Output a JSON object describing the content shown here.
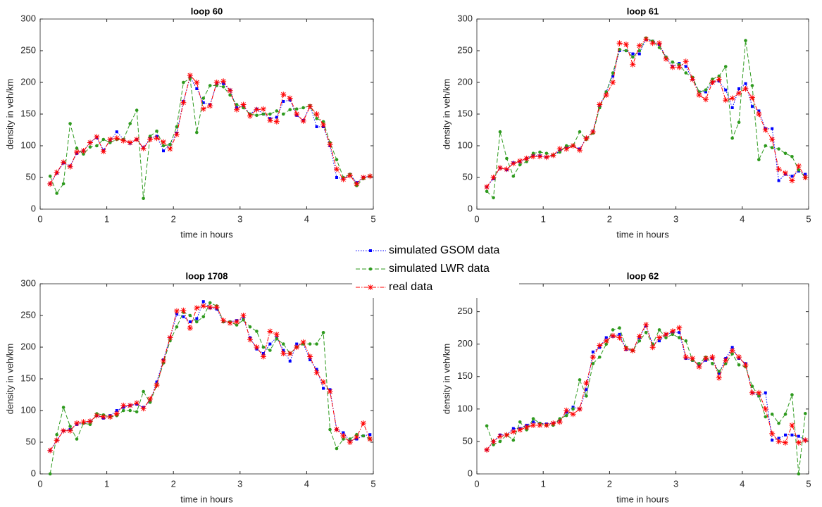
{
  "chart_data": [
    {
      "type": "line",
      "title": "loop 60",
      "xlabel": "time in hours",
      "ylabel": "density in veh/km",
      "xlim": [
        0,
        5
      ],
      "xticks": [
        0,
        1,
        2,
        3,
        4,
        5
      ],
      "ylim": [
        0,
        300
      ],
      "yticks": [
        0,
        50,
        100,
        150,
        200,
        250,
        300
      ],
      "x": [
        0.15,
        0.25,
        0.35,
        0.45,
        0.55,
        0.65,
        0.75,
        0.85,
        0.95,
        1.05,
        1.15,
        1.25,
        1.35,
        1.45,
        1.55,
        1.65,
        1.75,
        1.85,
        1.95,
        2.05,
        2.15,
        2.25,
        2.35,
        2.45,
        2.55,
        2.65,
        2.75,
        2.85,
        2.95,
        3.05,
        3.15,
        3.25,
        3.35,
        3.45,
        3.55,
        3.65,
        3.75,
        3.85,
        3.95,
        4.05,
        4.15,
        4.25,
        4.35,
        4.45,
        4.55,
        4.65,
        4.75,
        4.85,
        4.95
      ],
      "series": [
        {
          "values": [
            40,
            57,
            73,
            68,
            88,
            92,
            105,
            113,
            93,
            108,
            122,
            110,
            104,
            110,
            97,
            112,
            115,
            92,
            102,
            120,
            170,
            208,
            190,
            168,
            165,
            198,
            198,
            188,
            160,
            163,
            150,
            158,
            150,
            143,
            145,
            170,
            172,
            148,
            140,
            163,
            130,
            130,
            100,
            50,
            48,
            55,
            42,
            50,
            52
          ]
        },
        {
          "values": [
            52,
            25,
            40,
            135,
            96,
            87,
            98,
            100,
            110,
            105,
            110,
            110,
            135,
            156,
            17,
            115,
            123,
            100,
            102,
            130,
            200,
            206,
            121,
            175,
            195,
            195,
            193,
            180,
            165,
            160,
            150,
            148,
            150,
            150,
            155,
            150,
            157,
            158,
            160,
            163,
            143,
            138,
            105,
            78,
            50,
            55,
            37,
            48,
            52
          ]
        },
        {
          "values": [
            40,
            58,
            74,
            67,
            90,
            92,
            105,
            114,
            91,
            110,
            112,
            108,
            105,
            110,
            96,
            110,
            112,
            106,
            95,
            118,
            168,
            211,
            200,
            158,
            163,
            200,
            202,
            187,
            157,
            165,
            147,
            157,
            158,
            140,
            138,
            181,
            175,
            150,
            139,
            162,
            150,
            133,
            102,
            63,
            47,
            53,
            40,
            50,
            52
          ]
        }
      ]
    },
    {
      "type": "line",
      "title": "loop 61",
      "xlabel": "time in hours",
      "ylabel": "density in veh/km",
      "xlim": [
        0,
        5
      ],
      "xticks": [
        0,
        1,
        2,
        3,
        4,
        5
      ],
      "ylim": [
        0,
        300
      ],
      "yticks": [
        0,
        50,
        100,
        150,
        200,
        250,
        300
      ],
      "x": [
        0.15,
        0.25,
        0.35,
        0.45,
        0.55,
        0.65,
        0.75,
        0.85,
        0.95,
        1.05,
        1.15,
        1.25,
        1.35,
        1.45,
        1.55,
        1.65,
        1.75,
        1.85,
        1.95,
        2.05,
        2.15,
        2.25,
        2.35,
        2.45,
        2.55,
        2.65,
        2.75,
        2.85,
        2.95,
        3.05,
        3.15,
        3.25,
        3.35,
        3.45,
        3.55,
        3.65,
        3.75,
        3.85,
        3.95,
        4.05,
        4.15,
        4.25,
        4.35,
        4.45,
        4.55,
        4.65,
        4.75,
        4.85,
        4.95
      ],
      "series": [
        {
          "values": [
            35,
            48,
            65,
            62,
            73,
            75,
            80,
            85,
            84,
            82,
            85,
            92,
            98,
            100,
            95,
            112,
            122,
            163,
            185,
            210,
            250,
            250,
            245,
            245,
            268,
            265,
            260,
            240,
            225,
            230,
            225,
            205,
            185,
            185,
            200,
            202,
            188,
            160,
            190,
            198,
            162,
            155,
            127,
            127,
            45,
            55,
            52,
            60,
            55
          ]
        },
        {
          "values": [
            28,
            18,
            122,
            80,
            52,
            70,
            75,
            88,
            90,
            88,
            85,
            90,
            100,
            100,
            122,
            110,
            120,
            160,
            185,
            215,
            252,
            250,
            240,
            250,
            270,
            265,
            255,
            240,
            232,
            228,
            215,
            208,
            185,
            188,
            205,
            210,
            225,
            112,
            137,
            266,
            195,
            78,
            100,
            97,
            95,
            88,
            83,
            62,
            50
          ]
        },
        {
          "values": [
            35,
            50,
            65,
            63,
            72,
            76,
            80,
            83,
            83,
            82,
            85,
            95,
            95,
            100,
            93,
            112,
            122,
            165,
            180,
            200,
            262,
            260,
            228,
            258,
            268,
            262,
            262,
            237,
            224,
            224,
            233,
            205,
            180,
            173,
            200,
            205,
            172,
            175,
            183,
            190,
            176,
            150,
            125,
            110,
            63,
            57,
            45,
            68,
            50
          ]
        }
      ]
    },
    {
      "type": "line",
      "title": "loop 1708",
      "xlabel": "time in hours",
      "ylabel": "density in veh/km",
      "xlim": [
        0,
        5
      ],
      "xticks": [
        0,
        1,
        2,
        3,
        4,
        5
      ],
      "ylim": [
        0,
        300
      ],
      "yticks": [
        0,
        50,
        100,
        150,
        200,
        250,
        300
      ],
      "x": [
        0.15,
        0.25,
        0.35,
        0.45,
        0.55,
        0.65,
        0.75,
        0.85,
        0.95,
        1.05,
        1.15,
        1.25,
        1.35,
        1.45,
        1.55,
        1.65,
        1.75,
        1.85,
        1.95,
        2.05,
        2.15,
        2.25,
        2.35,
        2.45,
        2.55,
        2.65,
        2.75,
        2.85,
        2.95,
        3.05,
        3.15,
        3.25,
        3.35,
        3.45,
        3.55,
        3.65,
        3.75,
        3.85,
        3.95,
        4.05,
        4.15,
        4.25,
        4.35,
        4.45,
        4.55,
        4.65,
        4.75,
        4.85,
        4.95
      ],
      "series": [
        {
          "values": [
            37,
            53,
            68,
            70,
            78,
            80,
            83,
            92,
            88,
            92,
            100,
            105,
            108,
            110,
            105,
            115,
            145,
            180,
            215,
            252,
            248,
            240,
            245,
            272,
            262,
            260,
            240,
            240,
            242,
            245,
            215,
            197,
            190,
            205,
            215,
            195,
            178,
            205,
            205,
            180,
            165,
            135,
            133,
            70,
            65,
            52,
            55,
            60,
            62
          ]
        },
        {
          "values": [
            0,
            62,
            105,
            75,
            55,
            80,
            78,
            95,
            93,
            90,
            92,
            100,
            100,
            98,
            130,
            113,
            140,
            175,
            210,
            232,
            255,
            250,
            240,
            248,
            270,
            265,
            240,
            240,
            235,
            243,
            232,
            225,
            200,
            195,
            213,
            205,
            190,
            200,
            205,
            205,
            205,
            223,
            70,
            40,
            55,
            55,
            62,
            60,
            55
          ]
        },
        {
          "values": [
            37,
            53,
            68,
            68,
            80,
            82,
            83,
            92,
            90,
            90,
            95,
            108,
            108,
            112,
            103,
            118,
            140,
            178,
            215,
            257,
            258,
            230,
            262,
            265,
            263,
            263,
            242,
            238,
            240,
            250,
            212,
            200,
            185,
            225,
            220,
            190,
            190,
            200,
            208,
            185,
            160,
            145,
            130,
            70,
            60,
            50,
            58,
            80,
            55
          ]
        }
      ]
    },
    {
      "type": "line",
      "title": "loop 62",
      "xlabel": "time in hours",
      "ylabel": "density in veh/km",
      "xlim": [
        0,
        5
      ],
      "xticks": [
        0,
        1,
        2,
        3,
        4,
        5
      ],
      "ylim": [
        0,
        293
      ],
      "yticks": [
        0,
        50,
        100,
        150,
        200,
        250
      ],
      "x": [
        0.15,
        0.25,
        0.35,
        0.45,
        0.55,
        0.65,
        0.75,
        0.85,
        0.95,
        1.05,
        1.15,
        1.25,
        1.35,
        1.45,
        1.55,
        1.65,
        1.75,
        1.85,
        1.95,
        2.05,
        2.15,
        2.25,
        2.35,
        2.45,
        2.55,
        2.65,
        2.75,
        2.85,
        2.95,
        3.05,
        3.15,
        3.25,
        3.35,
        3.45,
        3.55,
        3.65,
        3.75,
        3.85,
        3.95,
        4.05,
        4.15,
        4.25,
        4.35,
        4.45,
        4.55,
        4.65,
        4.75,
        4.85,
        4.95
      ],
      "series": [
        {
          "values": [
            37,
            50,
            60,
            60,
            70,
            70,
            75,
            80,
            78,
            77,
            78,
            82,
            95,
            103,
            100,
            130,
            188,
            195,
            210,
            212,
            215,
            192,
            190,
            210,
            228,
            200,
            205,
            215,
            218,
            218,
            178,
            175,
            168,
            175,
            178,
            155,
            178,
            195,
            178,
            170,
            125,
            120,
            125,
            52,
            55,
            60,
            60,
            58,
            52
          ]
        },
        {
          "values": [
            74,
            45,
            50,
            60,
            52,
            80,
            68,
            85,
            78,
            75,
            75,
            85,
            90,
            100,
            145,
            120,
            170,
            180,
            200,
            222,
            225,
            195,
            190,
            205,
            218,
            200,
            222,
            210,
            215,
            210,
            205,
            175,
            170,
            180,
            170,
            158,
            170,
            185,
            168,
            165,
            135,
            120,
            88,
            92,
            78,
            92,
            122,
            0,
            93
          ]
        },
        {
          "values": [
            37,
            50,
            58,
            60,
            65,
            68,
            72,
            75,
            75,
            75,
            78,
            80,
            98,
            92,
            100,
            140,
            180,
            198,
            205,
            213,
            210,
            193,
            190,
            212,
            230,
            195,
            210,
            215,
            220,
            225,
            180,
            178,
            165,
            178,
            180,
            148,
            175,
            190,
            180,
            168,
            125,
            125,
            100,
            62,
            50,
            48,
            75,
            48,
            52
          ]
        }
      ]
    }
  ],
  "legend": [
    {
      "name": "simulated GSOM data",
      "color": "#0000ff",
      "dash": "1.5,2",
      "marker": "square"
    },
    {
      "name": "simulated LWR data",
      "color": "#2e9a1e",
      "dash": "6,3",
      "marker": "dot"
    },
    {
      "name": "real data",
      "color": "#ff0000",
      "dash": "6,2,1.5,2",
      "marker": "asterisk"
    }
  ]
}
